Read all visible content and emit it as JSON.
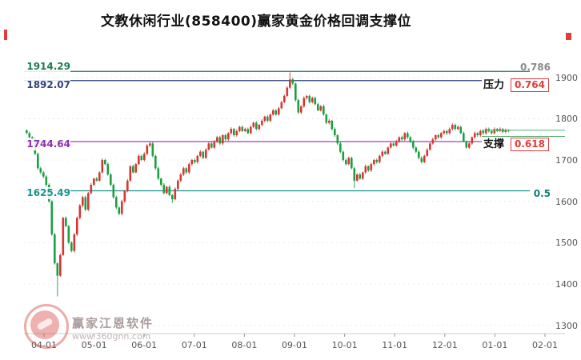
{
  "title": "文教休闲行业(858400)赢家黄金价格回调支撑位",
  "watermark": {
    "brand": "赢家江恩软件",
    "url": "www.360gnn.com"
  },
  "colors": {
    "up": "#d93531",
    "down": "#1d9e43",
    "grid": "#ececec",
    "axis_text": "#555555",
    "box_red": "#e23b3b",
    "recent_line": "#55b06a"
  },
  "axis": {
    "y_min": 1280,
    "y_max": 2000,
    "y_ticks": [
      "1900",
      "1800",
      "1700",
      "1600",
      "1500",
      "1400",
      "1300"
    ],
    "x_ticks": [
      "04-01",
      "05-01",
      "06-01",
      "07-01",
      "08-01",
      "09-01",
      "10-01",
      "11-01",
      "12-01",
      "01-01",
      "02-01"
    ]
  },
  "levels": [
    {
      "value": 1914.29,
      "label": "1914.29",
      "ratio": "0.786",
      "color": "#2e6b5e",
      "label_color": "#1e7a52",
      "ratio_color": "#8a8a8a",
      "boxed": false,
      "side": ""
    },
    {
      "value": 1892.07,
      "label": "1892.07",
      "ratio": "0.764",
      "color": "#33417f",
      "label_color": "#33417f",
      "ratio_color": "#e23b3b",
      "boxed": true,
      "side": "压力"
    },
    {
      "value": 1744.64,
      "label": "1744.64",
      "ratio": "0.618",
      "color": "#8a30b0",
      "label_color": "#8a2fb0",
      "ratio_color": "#e23b3b",
      "boxed": true,
      "side": "支撑"
    },
    {
      "value": 1625.49,
      "label": "1625.49",
      "ratio": "0.5",
      "color": "#1b948c",
      "label_color": "#1b948c",
      "ratio_color": "#0f7d74",
      "boxed": false,
      "side": ""
    }
  ],
  "chart_data": {
    "type": "candlestick",
    "symbol": "858400",
    "title": "文教休闲行业(858400)赢家黄金价格回调支撑位",
    "ylim": [
      1300,
      1900
    ],
    "first_open": 1772,
    "closes": [
      1765,
      1755,
      1750,
      1715,
      1680,
      1670,
      1660,
      1640,
      1600,
      1520,
      1450,
      1420,
      1470,
      1560,
      1540,
      1500,
      1480,
      1520,
      1560,
      1590,
      1610,
      1580,
      1620,
      1640,
      1655,
      1650,
      1670,
      1700,
      1690,
      1665,
      1640,
      1610,
      1585,
      1570,
      1600,
      1625,
      1650,
      1685,
      1670,
      1690,
      1710,
      1700,
      1715,
      1735,
      1740,
      1710,
      1680,
      1655,
      1640,
      1620,
      1635,
      1615,
      1605,
      1630,
      1650,
      1665,
      1680,
      1670,
      1690,
      1700,
      1695,
      1710,
      1720,
      1705,
      1725,
      1740,
      1730,
      1745,
      1755,
      1740,
      1760,
      1750,
      1765,
      1775,
      1760,
      1770,
      1780,
      1770,
      1775,
      1765,
      1780,
      1790,
      1775,
      1785,
      1795,
      1805,
      1795,
      1810,
      1820,
      1810,
      1825,
      1840,
      1855,
      1875,
      1895,
      1885,
      1845,
      1815,
      1830,
      1850,
      1855,
      1840,
      1850,
      1835,
      1820,
      1830,
      1810,
      1790,
      1795,
      1775,
      1760,
      1740,
      1720,
      1700,
      1690,
      1705,
      1680,
      1650,
      1665,
      1655,
      1670,
      1685,
      1675,
      1690,
      1700,
      1695,
      1710,
      1720,
      1715,
      1730,
      1740,
      1735,
      1745,
      1755,
      1750,
      1765,
      1755,
      1745,
      1730,
      1720,
      1705,
      1695,
      1710,
      1725,
      1740,
      1750,
      1760,
      1755,
      1765,
      1770,
      1765,
      1775,
      1785,
      1775,
      1780,
      1765,
      1745,
      1730,
      1740,
      1755,
      1765,
      1760,
      1770,
      1765,
      1775,
      1770,
      1765,
      1775,
      1770,
      1775,
      1768,
      1772,
      1770
    ],
    "wick_overrides": {
      "11": {
        "low": 1370
      },
      "52": {
        "low": 1596
      },
      "94": {
        "high": 1912
      },
      "117": {
        "low": 1632
      }
    },
    "recent_lines": [
      1772,
      1757
    ]
  }
}
